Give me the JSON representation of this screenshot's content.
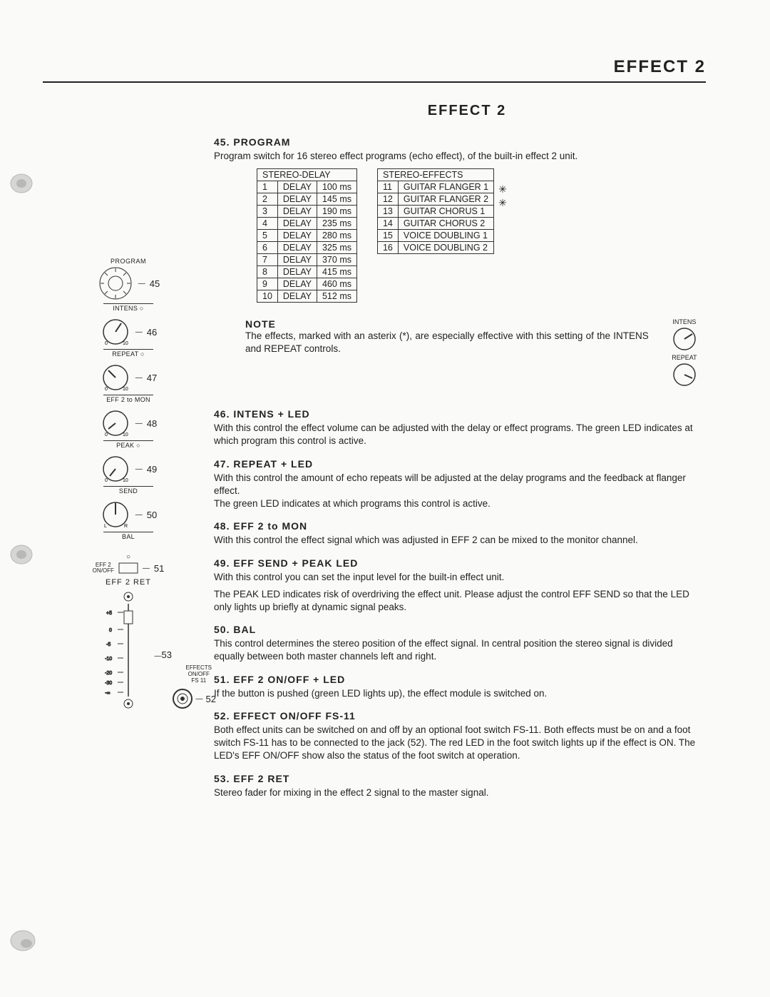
{
  "page_header": "EFFECT 2",
  "section_header": "EFFECT 2",
  "item45": {
    "heading": "45.  PROGRAM",
    "text": "Program switch for 16 stereo effect programs (echo effect), of the built-in effect 2 unit."
  },
  "delay_table": {
    "header": "STEREO-DELAY",
    "rows": [
      [
        "1",
        "DELAY",
        "100 ms"
      ],
      [
        "2",
        "DELAY",
        "145 ms"
      ],
      [
        "3",
        "DELAY",
        "190 ms"
      ],
      [
        "4",
        "DELAY",
        "235 ms"
      ],
      [
        "5",
        "DELAY",
        "280 ms"
      ],
      [
        "6",
        "DELAY",
        "325 ms"
      ],
      [
        "7",
        "DELAY",
        "370 ms"
      ],
      [
        "8",
        "DELAY",
        "415 ms"
      ],
      [
        "9",
        "DELAY",
        "460 ms"
      ],
      [
        "10",
        "DELAY",
        "512 ms"
      ]
    ]
  },
  "effects_table": {
    "header": "STEREO-EFFECTS",
    "rows": [
      [
        "11",
        "GUITAR FLANGER 1"
      ],
      [
        "12",
        "GUITAR FLANGER 2"
      ],
      [
        "13",
        "GUITAR CHORUS 1"
      ],
      [
        "14",
        "GUITAR CHORUS 2"
      ],
      [
        "15",
        "VOICE DOUBLING 1"
      ],
      [
        "16",
        "VOICE DOUBLING 2"
      ]
    ],
    "asterisks": [
      "✳",
      "✳"
    ]
  },
  "note": {
    "heading": "NOTE",
    "text": "The effects, marked with an asterix (*), are especially effective with this setting of the INTENS and REPEAT controls.",
    "knob_labels": [
      "INTENS",
      "REPEAT"
    ]
  },
  "items": [
    {
      "heading": "46. INTENS + LED",
      "text": "With this control the effect volume can be adjusted with the delay or effect programs. The green LED indicates at which program this control is active."
    },
    {
      "heading": "47. REPEAT + LED",
      "text": "With this control the amount of echo repeats will be adjusted at the delay programs and the feedback at flanger effect.\nThe green LED indicates at which programs this control is active."
    },
    {
      "heading": "48. EFF 2 to MON",
      "text": "With this control the effect signal which was adjusted in EFF 2 can be mixed to the monitor channel."
    },
    {
      "heading": "49. EFF SEND + PEAK LED",
      "text": "With this control you can set the input level for the built-in effect unit.\n\nThe PEAK LED indicates risk of overdriving the effect unit. Please adjust the control EFF SEND so that the LED only lights up briefly at dynamic signal peaks."
    },
    {
      "heading": "50. BAL",
      "text": "This control determines the stereo position of the effect signal. In central position the stereo signal is divided equally between both master channels left and right."
    },
    {
      "heading": "51. EFF 2 ON/OFF + LED",
      "text": "If the button is pushed (green LED lights up), the effect module is switched on."
    },
    {
      "heading": "52. EFFECT ON/OFF FS-11",
      "text": "Both effect units can be switched on and off by an optional foot switch FS-11. Both effects must be on and a foot switch FS-11 has to be connected to the jack (52). The red LED in the foot switch lights up if the effect is ON. The LED's EFF ON/OFF show also the status of the foot switch at operation."
    },
    {
      "heading": "53. EFF 2 RET",
      "text": "Stereo fader for mixing in the effect 2 signal to the master signal."
    }
  ],
  "panel": {
    "labels": {
      "program": "PROGRAM",
      "intens": "INTENS ○",
      "repeat": "REPEAT ○",
      "eff2mon": "EFF 2 to MON",
      "peak": "PEAK ○",
      "send": "SEND",
      "bal": "BAL",
      "eff2onoff": "EFF 2\nON/OFF",
      "eff2ret": "EFF 2 RET",
      "effects_fs": "EFFECTS\nON/OFF\nFS 11"
    },
    "pointers": {
      "p45": "45",
      "p46": "46",
      "p47": "47",
      "p48": "48",
      "p49": "49",
      "p50": "50",
      "p51": "51",
      "p52": "52",
      "p53": "53"
    }
  },
  "colors": {
    "text": "#222222",
    "bg": "#fafaf8",
    "border": "#333333"
  }
}
